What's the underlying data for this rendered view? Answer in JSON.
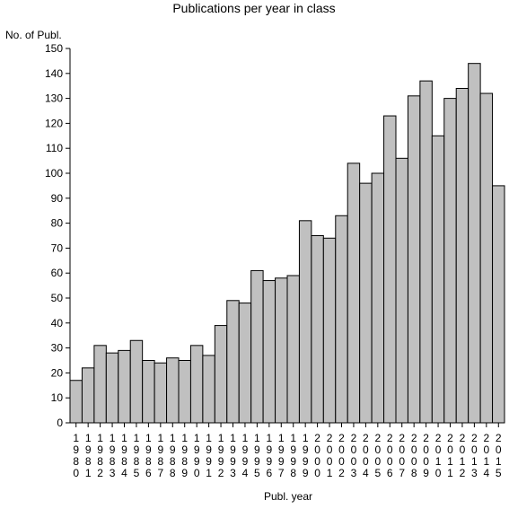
{
  "chart_data": {
    "type": "bar",
    "title": "Publications per year in class",
    "ylabel": "No. of Publ.",
    "xlabel": "Publ. year",
    "ylim": [
      0,
      150
    ],
    "yticks": [
      0,
      10,
      20,
      30,
      40,
      50,
      60,
      70,
      80,
      90,
      100,
      110,
      120,
      130,
      140,
      150
    ],
    "categories": [
      "1980",
      "1981",
      "1982",
      "1983",
      "1984",
      "1985",
      "1986",
      "1987",
      "1988",
      "1989",
      "1990",
      "1991",
      "1992",
      "1993",
      "1994",
      "1995",
      "1996",
      "1997",
      "1998",
      "1999",
      "2000",
      "2001",
      "2002",
      "2003",
      "2004",
      "2005",
      "2006",
      "2007",
      "2008",
      "2009",
      "2010",
      "2011",
      "2012",
      "2013",
      "2014",
      "2015"
    ],
    "values": [
      17,
      22,
      31,
      28,
      29,
      33,
      25,
      24,
      26,
      25,
      31,
      27,
      39,
      49,
      48,
      61,
      57,
      58,
      59,
      81,
      75,
      74,
      83,
      104,
      96,
      100,
      123,
      106,
      131,
      137,
      115,
      130,
      134,
      144,
      132,
      95
    ],
    "bar_color": "#c0c0c0",
    "grid": false,
    "legend": "none"
  }
}
